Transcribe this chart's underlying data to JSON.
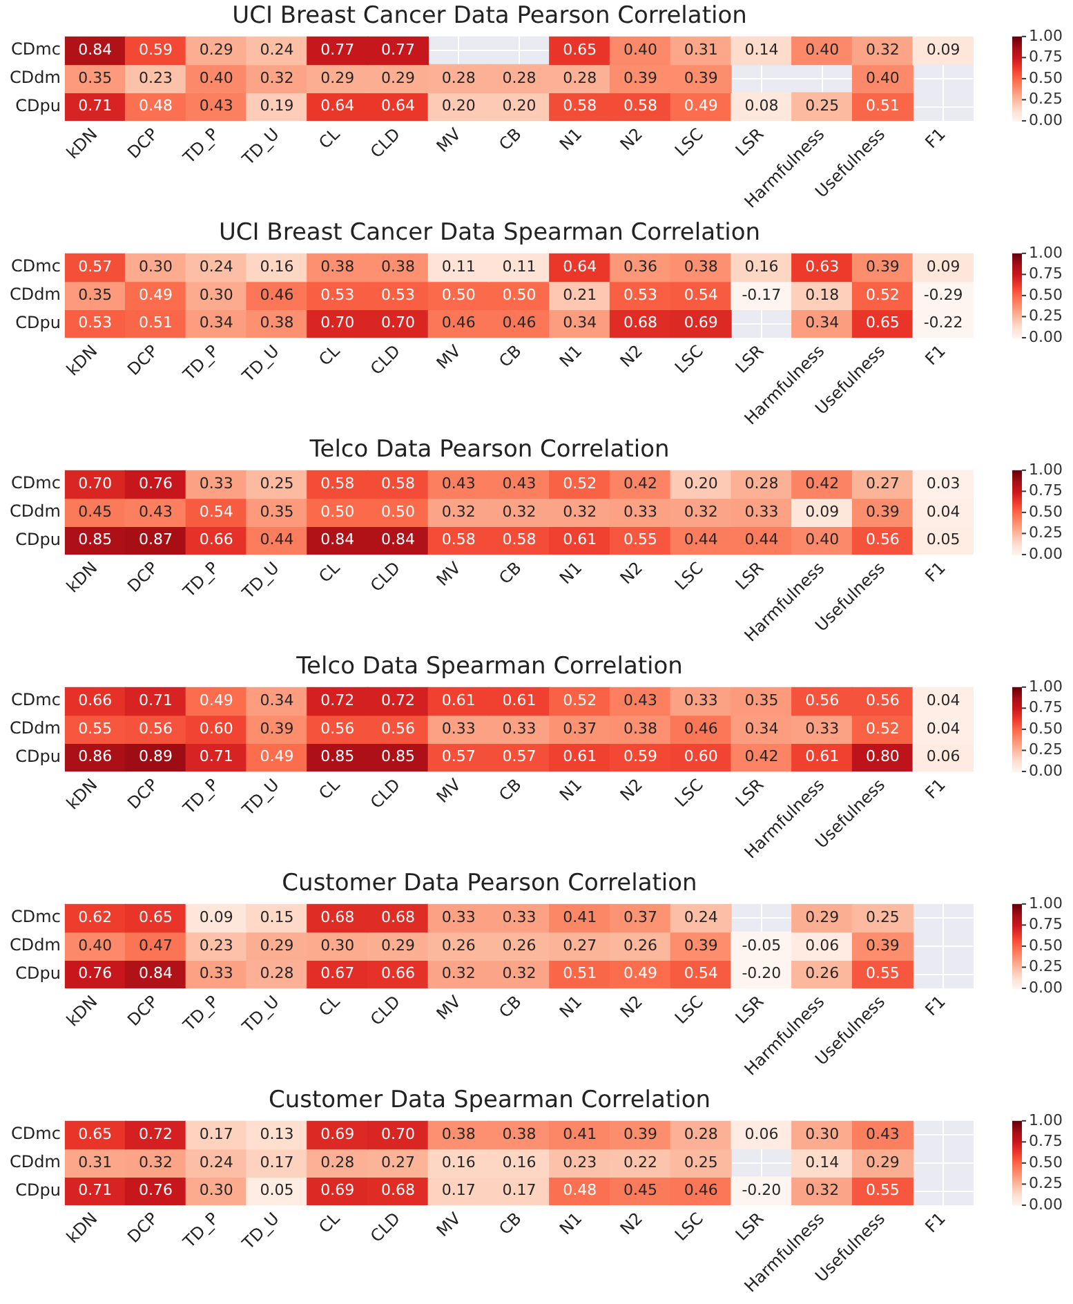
{
  "chart_data": [
    {
      "type": "heatmap",
      "title": "UCI Breast Cancer Data Pearson Correlation",
      "categories": [
        "kDN",
        "DCP",
        "TD_P",
        "TD_U",
        "CL",
        "CLD",
        "MV",
        "CB",
        "N1",
        "N2",
        "LSC",
        "LSR",
        "Harmfulness",
        "Usefulness",
        "F1"
      ],
      "y_categories": [
        "CDmc",
        "CDdm",
        "CDpu"
      ],
      "clim": [
        0,
        1
      ],
      "grid": true,
      "data_labels": true,
      "cticks": [
        {
          "value": 0,
          "label": "0.00"
        },
        {
          "value": 0.25,
          "label": "0.25"
        },
        {
          "value": 0.5,
          "label": "0.50"
        },
        {
          "value": 0.75,
          "label": "0.75"
        },
        {
          "value": 1,
          "label": "1.00"
        }
      ],
      "cells": [
        [
          0.84,
          0.59,
          0.29,
          0.24,
          0.77,
          0.77,
          null,
          null,
          0.65,
          0.4,
          0.31,
          0.14,
          0.4,
          0.32,
          0.09
        ],
        [
          0.35,
          0.23,
          0.4,
          0.32,
          0.29,
          0.29,
          0.28,
          0.28,
          0.28,
          0.39,
          0.39,
          null,
          null,
          0.4,
          null
        ],
        [
          0.71,
          0.48,
          0.43,
          0.19,
          0.64,
          0.64,
          0.2,
          0.2,
          0.58,
          0.58,
          0.49,
          0.08,
          0.25,
          0.51,
          null
        ]
      ],
      "cell_labels": [
        [
          "0.84",
          "0.59",
          "0.29",
          "0.24",
          "0.77",
          "0.77",
          null,
          null,
          "0.65",
          "0.40",
          "0.31",
          "0.14",
          "0.40",
          "0.32",
          "0.09"
        ],
        [
          "0.35",
          "0.23",
          "0.40",
          "0.32",
          "0.29",
          "0.29",
          "0.28",
          "0.28",
          "0.28",
          "0.39",
          "0.39",
          null,
          null,
          "0.40",
          null
        ],
        [
          "0.71",
          "0.48",
          "0.43",
          "0.19",
          "0.64",
          "0.64",
          "0.20",
          "0.20",
          "0.58",
          "0.58",
          "0.49",
          "0.08",
          "0.25",
          "0.51",
          null
        ]
      ]
    },
    {
      "type": "heatmap",
      "title": "UCI Breast Cancer Data Spearman Correlation",
      "categories": [
        "kDN",
        "DCP",
        "TD_P",
        "TD_U",
        "CL",
        "CLD",
        "MV",
        "CB",
        "N1",
        "N2",
        "LSC",
        "LSR",
        "Harmfulness",
        "Usefulness",
        "F1"
      ],
      "y_categories": [
        "CDmc",
        "CDdm",
        "CDpu"
      ],
      "clim": [
        0,
        1
      ],
      "grid": true,
      "data_labels": true,
      "cticks": [
        {
          "value": 0,
          "label": "0.00"
        },
        {
          "value": 0.25,
          "label": "0.25"
        },
        {
          "value": 0.5,
          "label": "0.50"
        },
        {
          "value": 0.75,
          "label": "0.75"
        },
        {
          "value": 1,
          "label": "1.00"
        }
      ],
      "cells": [
        [
          0.57,
          0.3,
          0.24,
          0.16,
          0.38,
          0.38,
          0.11,
          0.11,
          0.64,
          0.36,
          0.38,
          0.16,
          0.63,
          0.39,
          0.09
        ],
        [
          0.35,
          0.49,
          0.3,
          0.46,
          0.53,
          0.53,
          0.5,
          0.5,
          0.21,
          0.53,
          0.54,
          -0.17,
          0.18,
          0.52,
          -0.29
        ],
        [
          0.53,
          0.51,
          0.34,
          0.38,
          0.7,
          0.7,
          0.46,
          0.46,
          0.34,
          0.68,
          0.69,
          null,
          0.34,
          0.65,
          -0.22
        ]
      ],
      "cell_labels": [
        [
          "0.57",
          "0.30",
          "0.24",
          "0.16",
          "0.38",
          "0.38",
          "0.11",
          "0.11",
          "0.64",
          "0.36",
          "0.38",
          "0.16",
          "0.63",
          "0.39",
          "0.09"
        ],
        [
          "0.35",
          "0.49",
          "0.30",
          "0.46",
          "0.53",
          "0.53",
          "0.50",
          "0.50",
          "0.21",
          "0.53",
          "0.54",
          "-0.17",
          "0.18",
          "0.52",
          "-0.29"
        ],
        [
          "0.53",
          "0.51",
          "0.34",
          "0.38",
          "0.70",
          "0.70",
          "0.46",
          "0.46",
          "0.34",
          "0.68",
          "0.69",
          null,
          "0.34",
          "0.65",
          "-0.22"
        ]
      ]
    },
    {
      "type": "heatmap",
      "title": "Telco Data Pearson Correlation",
      "categories": [
        "kDN",
        "DCP",
        "TD_P",
        "TD_U",
        "CL",
        "CLD",
        "MV",
        "CB",
        "N1",
        "N2",
        "LSC",
        "LSR",
        "Harmfulness",
        "Usefulness",
        "F1"
      ],
      "y_categories": [
        "CDmc",
        "CDdm",
        "CDpu"
      ],
      "clim": [
        0,
        1
      ],
      "grid": true,
      "data_labels": true,
      "cticks": [
        {
          "value": 0,
          "label": "0.00"
        },
        {
          "value": 0.25,
          "label": "0.25"
        },
        {
          "value": 0.5,
          "label": "0.50"
        },
        {
          "value": 0.75,
          "label": "0.75"
        },
        {
          "value": 1,
          "label": "1.00"
        }
      ],
      "cells": [
        [
          0.7,
          0.76,
          0.33,
          0.25,
          0.58,
          0.58,
          0.43,
          0.43,
          0.52,
          0.42,
          0.2,
          0.28,
          0.42,
          0.27,
          0.03
        ],
        [
          0.45,
          0.43,
          0.54,
          0.35,
          0.5,
          0.5,
          0.32,
          0.32,
          0.32,
          0.33,
          0.32,
          0.33,
          0.09,
          0.39,
          0.04
        ],
        [
          0.85,
          0.87,
          0.66,
          0.44,
          0.84,
          0.84,
          0.58,
          0.58,
          0.61,
          0.55,
          0.44,
          0.44,
          0.4,
          0.56,
          0.05
        ]
      ],
      "cell_labels": [
        [
          "0.70",
          "0.76",
          "0.33",
          "0.25",
          "0.58",
          "0.58",
          "0.43",
          "0.43",
          "0.52",
          "0.42",
          "0.20",
          "0.28",
          "0.42",
          "0.27",
          "0.03"
        ],
        [
          "0.45",
          "0.43",
          "0.54",
          "0.35",
          "0.50",
          "0.50",
          "0.32",
          "0.32",
          "0.32",
          "0.33",
          "0.32",
          "0.33",
          "0.09",
          "0.39",
          "0.04"
        ],
        [
          "0.85",
          "0.87",
          "0.66",
          "0.44",
          "0.84",
          "0.84",
          "0.58",
          "0.58",
          "0.61",
          "0.55",
          "0.44",
          "0.44",
          "0.40",
          "0.56",
          "0.05"
        ]
      ]
    },
    {
      "type": "heatmap",
      "title": "Telco Data Spearman Correlation",
      "categories": [
        "kDN",
        "DCP",
        "TD_P",
        "TD_U",
        "CL",
        "CLD",
        "MV",
        "CB",
        "N1",
        "N2",
        "LSC",
        "LSR",
        "Harmfulness",
        "Usefulness",
        "F1"
      ],
      "y_categories": [
        "CDmc",
        "CDdm",
        "CDpu"
      ],
      "clim": [
        0,
        1
      ],
      "grid": true,
      "data_labels": true,
      "cticks": [
        {
          "value": 0,
          "label": "0.00"
        },
        {
          "value": 0.25,
          "label": "0.25"
        },
        {
          "value": 0.5,
          "label": "0.50"
        },
        {
          "value": 0.75,
          "label": "0.75"
        },
        {
          "value": 1,
          "label": "1.00"
        }
      ],
      "cells": [
        [
          0.66,
          0.71,
          0.49,
          0.34,
          0.72,
          0.72,
          0.61,
          0.61,
          0.52,
          0.43,
          0.33,
          0.35,
          0.56,
          0.56,
          0.04
        ],
        [
          0.55,
          0.56,
          0.6,
          0.39,
          0.56,
          0.56,
          0.33,
          0.33,
          0.37,
          0.38,
          0.46,
          0.34,
          0.33,
          0.52,
          0.04
        ],
        [
          0.86,
          0.89,
          0.71,
          0.49,
          0.85,
          0.85,
          0.57,
          0.57,
          0.61,
          0.59,
          0.6,
          0.42,
          0.61,
          0.8,
          0.06
        ]
      ],
      "cell_labels": [
        [
          "0.66",
          "0.71",
          "0.49",
          "0.34",
          "0.72",
          "0.72",
          "0.61",
          "0.61",
          "0.52",
          "0.43",
          "0.33",
          "0.35",
          "0.56",
          "0.56",
          "0.04"
        ],
        [
          "0.55",
          "0.56",
          "0.60",
          "0.39",
          "0.56",
          "0.56",
          "0.33",
          "0.33",
          "0.37",
          "0.38",
          "0.46",
          "0.34",
          "0.33",
          "0.52",
          "0.04"
        ],
        [
          "0.86",
          "0.89",
          "0.71",
          "0.49",
          "0.85",
          "0.85",
          "0.57",
          "0.57",
          "0.61",
          "0.59",
          "0.60",
          "0.42",
          "0.61",
          "0.80",
          "0.06"
        ]
      ]
    },
    {
      "type": "heatmap",
      "title": "Customer Data Pearson Correlation",
      "categories": [
        "kDN",
        "DCP",
        "TD_P",
        "TD_U",
        "CL",
        "CLD",
        "MV",
        "CB",
        "N1",
        "N2",
        "LSC",
        "LSR",
        "Harmfulness",
        "Usefulness",
        "F1"
      ],
      "y_categories": [
        "CDmc",
        "CDdm",
        "CDpu"
      ],
      "clim": [
        0,
        1
      ],
      "grid": true,
      "data_labels": true,
      "cticks": [
        {
          "value": 0,
          "label": "0.00"
        },
        {
          "value": 0.25,
          "label": "0.25"
        },
        {
          "value": 0.5,
          "label": "0.50"
        },
        {
          "value": 0.75,
          "label": "0.75"
        },
        {
          "value": 1,
          "label": "1.00"
        }
      ],
      "cells": [
        [
          0.62,
          0.65,
          0.09,
          0.15,
          0.68,
          0.68,
          0.33,
          0.33,
          0.41,
          0.37,
          0.24,
          null,
          0.29,
          0.25,
          null
        ],
        [
          0.4,
          0.47,
          0.23,
          0.29,
          0.3,
          0.29,
          0.26,
          0.26,
          0.27,
          0.26,
          0.39,
          -0.05,
          0.06,
          0.39,
          null
        ],
        [
          0.76,
          0.84,
          0.33,
          0.28,
          0.67,
          0.66,
          0.32,
          0.32,
          0.51,
          0.49,
          0.54,
          -0.2,
          0.26,
          0.55,
          null
        ]
      ],
      "cell_labels": [
        [
          "0.62",
          "0.65",
          "0.09",
          "0.15",
          "0.68",
          "0.68",
          "0.33",
          "0.33",
          "0.41",
          "0.37",
          "0.24",
          null,
          "0.29",
          "0.25",
          null
        ],
        [
          "0.40",
          "0.47",
          "0.23",
          "0.29",
          "0.30",
          "0.29",
          "0.26",
          "0.26",
          "0.27",
          "0.26",
          "0.39",
          "-0.05",
          "0.06",
          "0.39",
          null
        ],
        [
          "0.76",
          "0.84",
          "0.33",
          "0.28",
          "0.67",
          "0.66",
          "0.32",
          "0.32",
          "0.51",
          "0.49",
          "0.54",
          "-0.20",
          "0.26",
          "0.55",
          null
        ]
      ]
    },
    {
      "type": "heatmap",
      "title": "Customer Data Spearman Correlation",
      "categories": [
        "kDN",
        "DCP",
        "TD_P",
        "TD_U",
        "CL",
        "CLD",
        "MV",
        "CB",
        "N1",
        "N2",
        "LSC",
        "LSR",
        "Harmfulness",
        "Usefulness",
        "F1"
      ],
      "y_categories": [
        "CDmc",
        "CDdm",
        "CDpu"
      ],
      "clim": [
        0,
        1
      ],
      "grid": true,
      "data_labels": true,
      "cticks": [
        {
          "value": 0,
          "label": "0.00"
        },
        {
          "value": 0.25,
          "label": "0.25"
        },
        {
          "value": 0.5,
          "label": "0.50"
        },
        {
          "value": 0.75,
          "label": "0.75"
        },
        {
          "value": 1,
          "label": "1.00"
        }
      ],
      "cells": [
        [
          0.65,
          0.72,
          0.17,
          0.13,
          0.69,
          0.7,
          0.38,
          0.38,
          0.41,
          0.39,
          0.28,
          0.06,
          0.3,
          0.43,
          null
        ],
        [
          0.31,
          0.32,
          0.24,
          0.17,
          0.28,
          0.27,
          0.16,
          0.16,
          0.23,
          0.22,
          0.25,
          null,
          0.14,
          0.29,
          null
        ],
        [
          0.71,
          0.76,
          0.3,
          0.05,
          0.69,
          0.68,
          0.17,
          0.17,
          0.48,
          0.45,
          0.46,
          -0.2,
          0.32,
          0.55,
          null
        ]
      ],
      "cell_labels": [
        [
          "0.65",
          "0.72",
          "0.17",
          "0.13",
          "0.69",
          "0.70",
          "0.38",
          "0.38",
          "0.41",
          "0.39",
          "0.28",
          "0.06",
          "0.30",
          "0.43",
          null
        ],
        [
          "0.31",
          "0.32",
          "0.24",
          "0.17",
          "0.28",
          "0.27",
          "0.16",
          "0.16",
          "0.23",
          "0.22",
          "0.25",
          null,
          "0.14",
          "0.29",
          null
        ],
        [
          "0.71",
          "0.76",
          "0.30",
          "0.05",
          "0.69",
          "0.68",
          "0.17",
          "0.17",
          "0.48",
          "0.45",
          "0.46",
          "-0.20",
          "0.32",
          "0.55",
          null
        ]
      ]
    }
  ]
}
